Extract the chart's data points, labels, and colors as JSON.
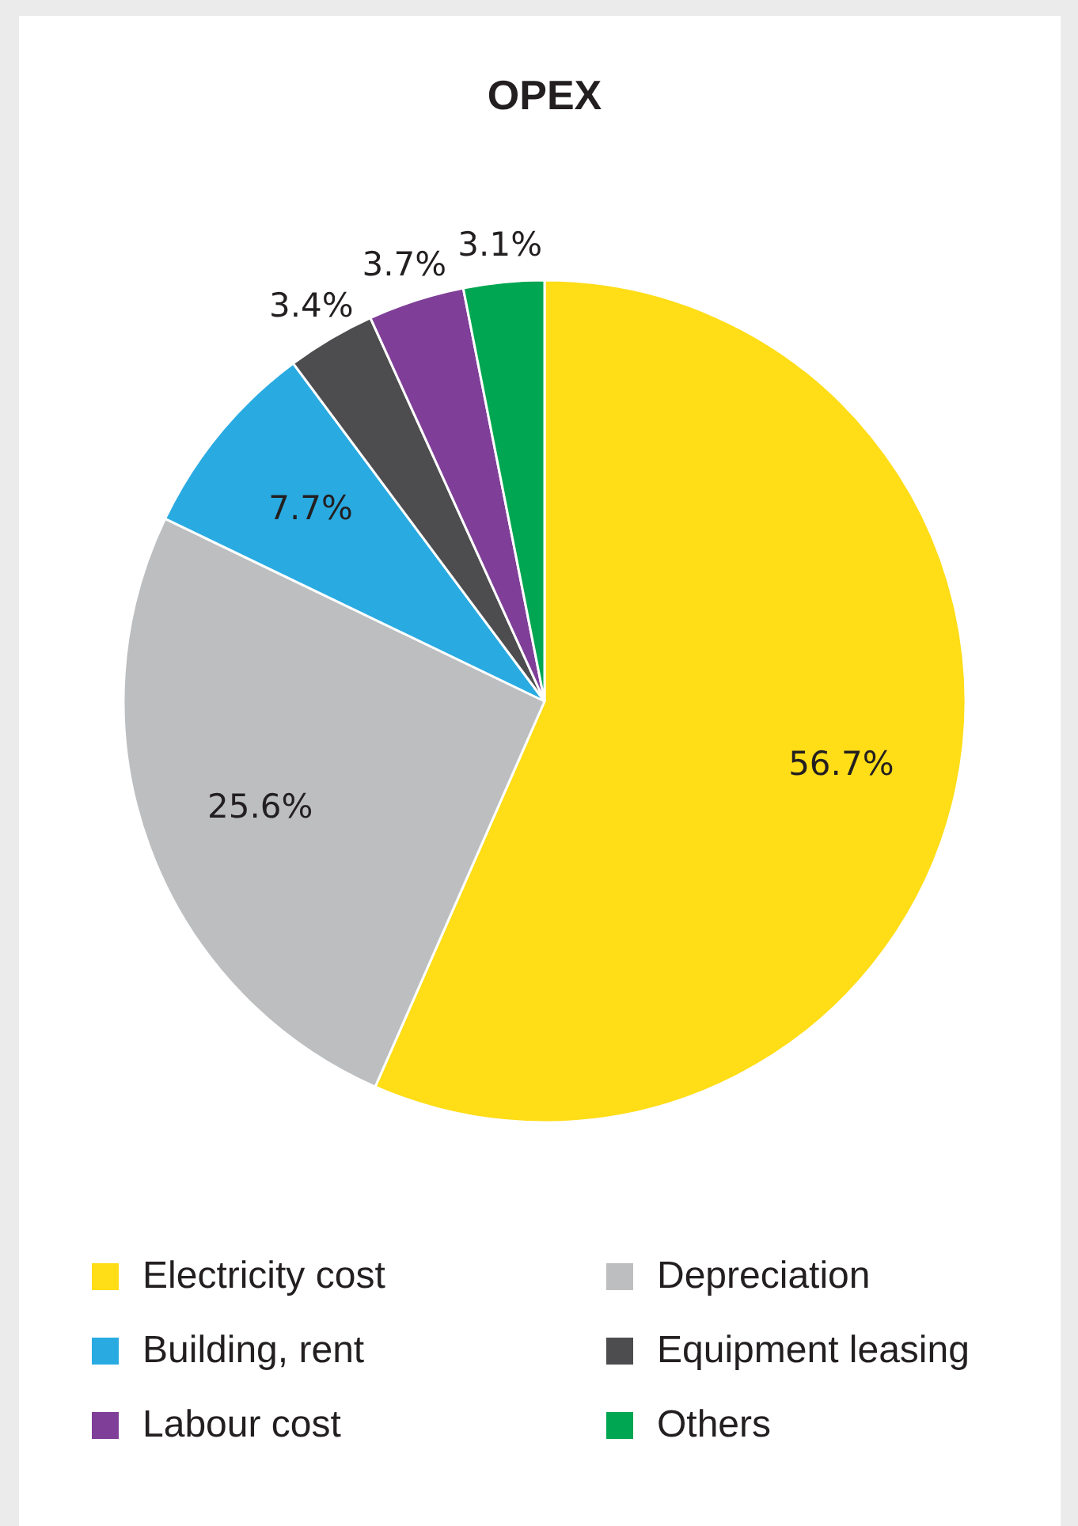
{
  "chart_data": {
    "type": "pie",
    "title": "OPEX",
    "categories": [
      "Electricity cost",
      "Depreciation",
      "Building, rent",
      "Equipment leasing",
      "Labour cost",
      "Others"
    ],
    "values": [
      56.7,
      25.6,
      7.7,
      3.4,
      3.7,
      3.1
    ],
    "colors": [
      "#ffdd17",
      "#bcbec0",
      "#29abe2",
      "#4d4d4f",
      "#7f3f98",
      "#00a651"
    ],
    "value_labels": [
      "56.7%",
      "25.6%",
      "7.7%",
      "3.4%",
      "3.7%",
      "3.1%"
    ],
    "legend": "bottom"
  }
}
